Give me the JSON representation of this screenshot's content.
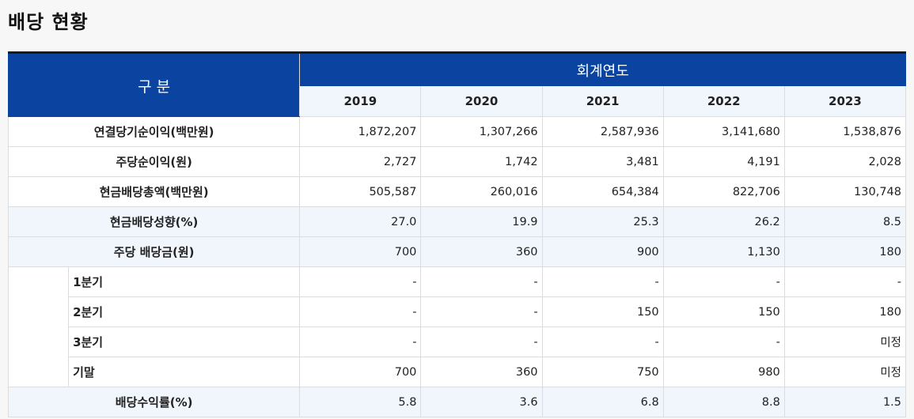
{
  "page": {
    "title": "배당 현황"
  },
  "table": {
    "header": {
      "category": "구 분",
      "group": "회계연도"
    },
    "years": [
      "2019",
      "2020",
      "2021",
      "2022",
      "2023"
    ],
    "rows": [
      {
        "label": "연결당기순이익(백만원)",
        "values": [
          "1,872,207",
          "1,307,266",
          "2,587,936",
          "3,141,680",
          "1,538,876"
        ]
      },
      {
        "label": "주당순이익(원)",
        "values": [
          "2,727",
          "1,742",
          "3,481",
          "4,191",
          "2,028"
        ]
      },
      {
        "label": "현금배당총액(백만원)",
        "values": [
          "505,587",
          "260,016",
          "654,384",
          "822,706",
          "130,748"
        ]
      },
      {
        "label": "현금배당성향(%)",
        "values": [
          "27.0",
          "19.9",
          "25.3",
          "26.2",
          "8.5"
        ]
      },
      {
        "label": "주당 배당금(원)",
        "values": [
          "700",
          "360",
          "900",
          "1,130",
          "180"
        ]
      }
    ],
    "sub_rows": [
      {
        "label": "1분기",
        "values": [
          "-",
          "-",
          "-",
          "-",
          "-"
        ]
      },
      {
        "label": "2분기",
        "values": [
          "-",
          "-",
          "150",
          "150",
          "180"
        ]
      },
      {
        "label": "3분기",
        "values": [
          "-",
          "-",
          "-",
          "-",
          "미정"
        ]
      },
      {
        "label": "기말",
        "values": [
          "700",
          "360",
          "750",
          "980",
          "미정"
        ]
      }
    ],
    "final_row": {
      "label": "배당수익률(%)",
      "values": [
        "5.8",
        "3.6",
        "6.8",
        "8.8",
        "1.5"
      ]
    }
  }
}
